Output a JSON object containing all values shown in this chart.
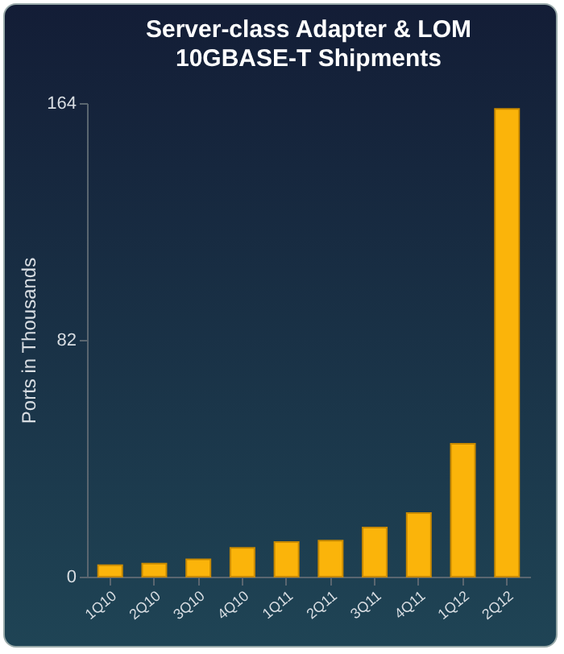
{
  "chart_data": {
    "type": "bar",
    "title": "Server-class Adapter & LOM 10GBASE-T Shipments",
    "ylabel": "Ports in Thousands",
    "categories": [
      "1Q10",
      "2Q10",
      "3Q10",
      "4Q10",
      "1Q11",
      "2Q11",
      "3Q11",
      "4Q11",
      "1Q12",
      "2Q12"
    ],
    "values": [
      4,
      4.5,
      6,
      10,
      12,
      12.5,
      17,
      22,
      46,
      162
    ],
    "color": "#fbb40a",
    "ylim": [
      0,
      164
    ],
    "yticks": [
      0,
      82,
      164
    ],
    "grid": false
  }
}
